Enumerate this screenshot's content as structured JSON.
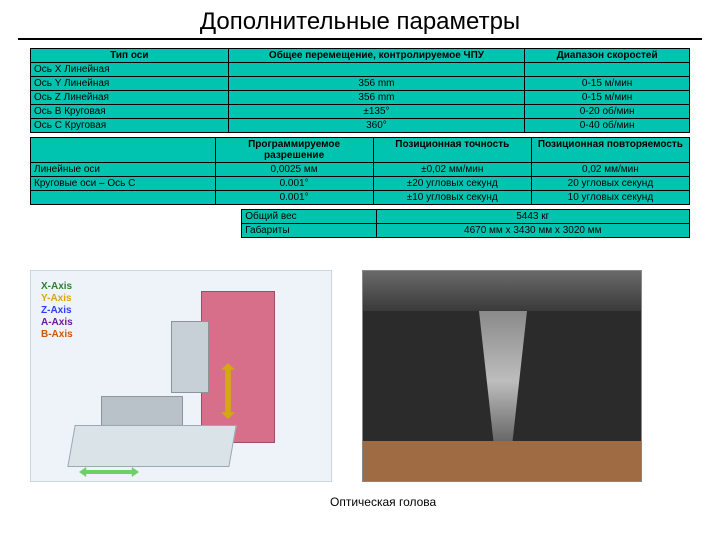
{
  "title": "Дополнительные параметры",
  "t1": {
    "bg": "#00c3b0",
    "h": [
      "Тип оси",
      "Общее перемещение, контролируемое ЧПУ",
      "Диапазон скоростей"
    ],
    "rows": [
      [
        "Ось X Линейная",
        "",
        ""
      ],
      [
        "Ось Y Линейная",
        "356 mm",
        "0-15 м/мин"
      ],
      [
        "Ось Z Линейная",
        "356 mm",
        "0-15 м/мин"
      ],
      [
        "Ось B Круговая",
        "±135°",
        "0-20 об/мин"
      ],
      [
        "Ось C Круговая",
        "360°",
        "0-40 об/мин"
      ]
    ]
  },
  "t2": {
    "bg": "#00c3b0",
    "h": [
      "",
      "Программируемое разрешение",
      "Позиционная точность",
      "Позиционная повторяемость"
    ],
    "rows": [
      [
        "Линейные оси",
        "0,0025 мм",
        "±0,02 мм/мин",
        "0,02 мм/мин"
      ],
      [
        "Круговые оси – Ось C",
        "0.001°",
        "±20 угловых секунд",
        "20 угловых секунд"
      ],
      [
        "",
        "0.001°",
        "±10 угловых секунд",
        "10 угловых секунд"
      ]
    ]
  },
  "t3": {
    "bg": "#00c3b0",
    "rows": [
      [
        "Общий вес",
        "5443 кг"
      ],
      [
        "Габариты",
        "4670 мм x 3430 мм x 3020 мм"
      ]
    ]
  },
  "axes": {
    "x": "X-Axis",
    "y": "Y-Axis",
    "z": "Z-Axis",
    "a": "A-Axis",
    "b": "B-Axis"
  },
  "caption": "Оптическая голова"
}
